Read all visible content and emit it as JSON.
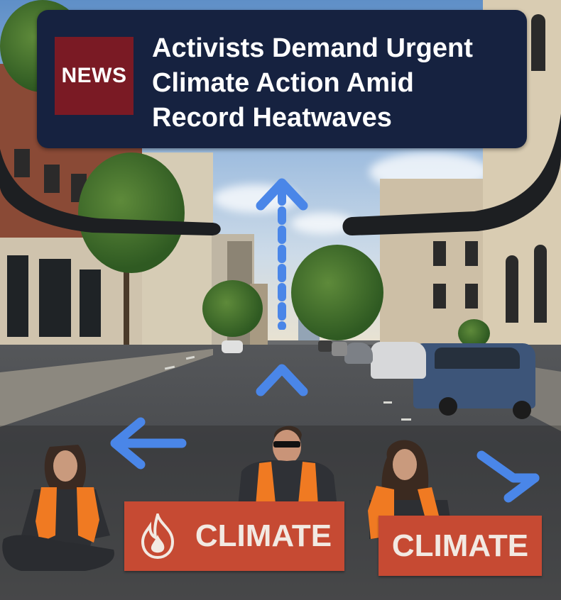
{
  "news_banner": {
    "badge": "NEWS",
    "headline_lines": [
      "Activists Demand Urgent",
      "Climate Action Amid",
      "Record Heatwaves"
    ],
    "background_color": "#162240",
    "badge_color": "#7a1a24"
  },
  "signs": [
    {
      "text": "CLIMATE",
      "icon": "flame-icon"
    },
    {
      "text": "CLIMATE"
    }
  ],
  "navigation_arrows": [
    "arrow-up-dashed",
    "arrow-up-chevron",
    "arrow-left",
    "arrow-down-right"
  ],
  "arrow_color": "#4a86e8"
}
